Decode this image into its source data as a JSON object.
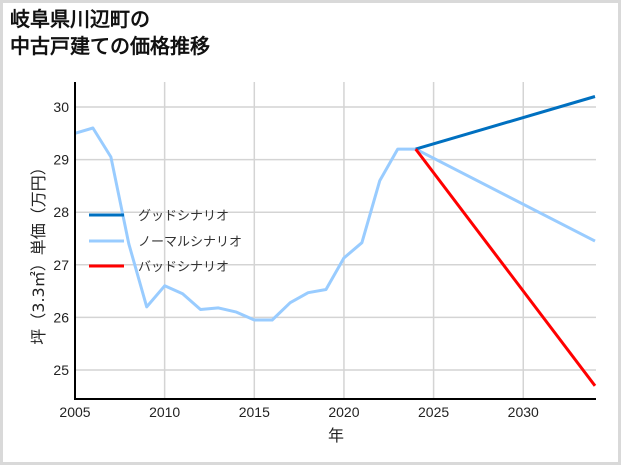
{
  "title_line1": "岐阜県川辺町の",
  "title_line2": "中古戸建ての価格推移",
  "chart_data": {
    "type": "line",
    "title": "岐阜県川辺町の中古戸建ての価格推移",
    "xlabel": "年",
    "ylabel": "坪（3.3㎡）単価（万円）",
    "xlim": [
      2005,
      2034
    ],
    "ylim": [
      24.45,
      30.45
    ],
    "xticks": [
      2005,
      2010,
      2015,
      2020,
      2025,
      2030
    ],
    "yticks": [
      25,
      26,
      27,
      28,
      29,
      30
    ],
    "grid": true,
    "legend_position": "left-middle",
    "series": [
      {
        "name": "グッドシナリオ",
        "color": "#0070C0",
        "x": [
          2024,
          2034
        ],
        "values": [
          29.2,
          30.2
        ]
      },
      {
        "name": "ノーマルシナリオ",
        "color": "#99CCFF",
        "x": [
          2005,
          2006,
          2007,
          2008,
          2009,
          2010,
          2011,
          2012,
          2013,
          2014,
          2015,
          2016,
          2017,
          2018,
          2019,
          2020,
          2021,
          2022,
          2023,
          2024,
          2034
        ],
        "values": [
          29.5,
          29.6,
          29.05,
          27.4,
          26.2,
          26.6,
          26.45,
          26.15,
          26.18,
          26.1,
          25.95,
          25.95,
          26.28,
          26.47,
          26.53,
          27.13,
          27.42,
          28.6,
          29.2,
          29.2,
          27.45
        ]
      },
      {
        "name": "バッドシナリオ",
        "color": "#FF0000",
        "x": [
          2024,
          2034
        ],
        "values": [
          29.2,
          24.7
        ]
      }
    ]
  }
}
